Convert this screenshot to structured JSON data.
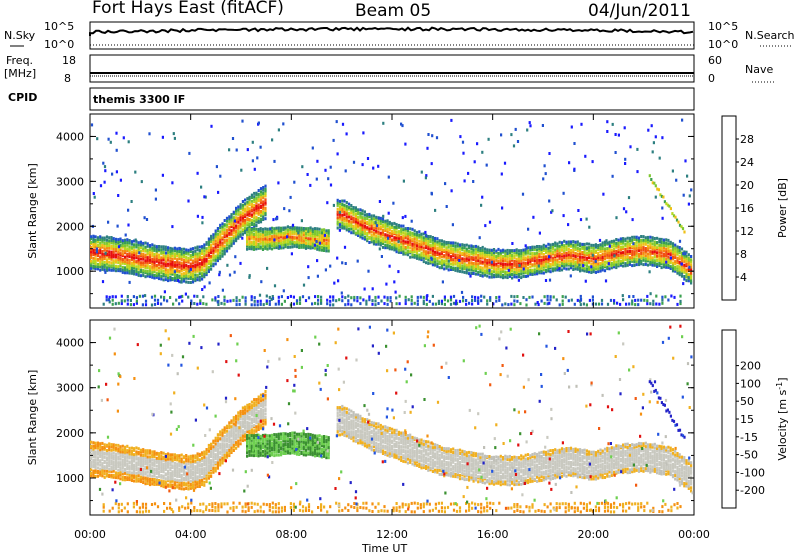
{
  "header": {
    "station": "Fort Hays East (fitACF)",
    "beam": "Beam 05",
    "date": "04/Jun/2011"
  },
  "aux_panels": {
    "nsky_label": "N.Sky",
    "nsearch_label": "N.Search",
    "freq_label_1": "Freq.",
    "freq_label_2": "[MHz]",
    "nave_label": "Nave",
    "cpid_label": "CPID",
    "nsky_ticks": [
      "10^5",
      "10^0"
    ],
    "nsearch_ticks": [
      "10^5",
      "10^0"
    ],
    "freq_ticks": [
      "18",
      "8"
    ],
    "nave_ticks": [
      "60",
      "0"
    ],
    "cpid_text": "themis 3300 IF"
  },
  "colors": {
    "power_scale": [
      "#1a1aff",
      "#2050d0",
      "#2d7f80",
      "#3aa050",
      "#7ec830",
      "#b8d820",
      "#f0c018",
      "#f58a10",
      "#f25010",
      "#e80e0e"
    ],
    "velocity_scale": [
      "#2323c8",
      "#2355e0",
      "#3a9030",
      "#6ed050",
      "#c9c9c0",
      "#c0c0b8",
      "#f0b020",
      "#f59010",
      "#f25a10",
      "#e01010"
    ]
  },
  "chart_data": [
    {
      "type": "heatmap",
      "title": "",
      "xlabel": "Time UT",
      "ylabel": "Slant Range [km]",
      "x_ticks": [
        "00:00",
        "04:00",
        "08:00",
        "12:00",
        "16:00",
        "20:00",
        "00:00"
      ],
      "x_range_hours": [
        0,
        24
      ],
      "y_ticks": [
        1000,
        2000,
        3000,
        4000
      ],
      "ylim": [
        180,
        4500
      ],
      "colorbar": {
        "label": "Power [dB]",
        "ticks": [
          4,
          8,
          12,
          16,
          20,
          24,
          28
        ],
        "range": [
          0,
          32
        ]
      },
      "features": [
        {
          "name": "main-echo-band",
          "hours": [
            0,
            1,
            2,
            3,
            4,
            4.5,
            5,
            6,
            7.0
          ],
          "range_km": [
            1450,
            1400,
            1300,
            1200,
            1150,
            1250,
            1600,
            2200,
            2600
          ]
        },
        {
          "name": "late-band",
          "hours": [
            10,
            11,
            12,
            13,
            14,
            15,
            16,
            17,
            18,
            19,
            20,
            21,
            22,
            23,
            24
          ],
          "range_km": [
            2300,
            2000,
            1800,
            1600,
            1400,
            1300,
            1200,
            1200,
            1300,
            1400,
            1300,
            1450,
            1500,
            1400,
            1000
          ]
        },
        {
          "name": "midday-patch",
          "hours": [
            6.2,
            7.0,
            8.0,
            9.0,
            9.5
          ],
          "range_km": [
            1750,
            1750,
            1800,
            1750,
            1700
          ]
        }
      ]
    },
    {
      "type": "heatmap",
      "title": "",
      "xlabel": "Time UT",
      "ylabel": "Slant Range [km]",
      "x_ticks": [
        "00:00",
        "04:00",
        "08:00",
        "12:00",
        "16:00",
        "20:00",
        "00:00"
      ],
      "x_range_hours": [
        0,
        24
      ],
      "y_ticks": [
        1000,
        2000,
        3000,
        4000
      ],
      "ylim": [
        180,
        4500
      ],
      "colorbar": {
        "label": "Velocity [m s",
        "label_sup": "-1",
        "label_end": "]",
        "ticks": [
          200,
          100,
          50,
          15,
          -15,
          -50,
          -100,
          -200
        ]
      }
    }
  ]
}
